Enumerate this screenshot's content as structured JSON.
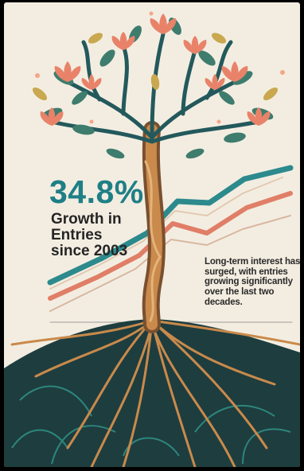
{
  "stat": {
    "value": "34.8%",
    "label_lines": [
      "Growth in",
      "Entries",
      "since 2003"
    ]
  },
  "note": "Long-term interest has surged, with entries growing significantly over the last two decades.",
  "colors": {
    "background": "#f3ede1",
    "teal": "#1f7f86",
    "soil": "#1e3d3f",
    "trunk": "#c98a4b",
    "leaf": "#3e7c6d",
    "blossom": "#e8836a",
    "coral_line": "#e07e67"
  },
  "icons": [
    "tree-illustration",
    "growth-line-graphic",
    "roots-illustration"
  ]
}
